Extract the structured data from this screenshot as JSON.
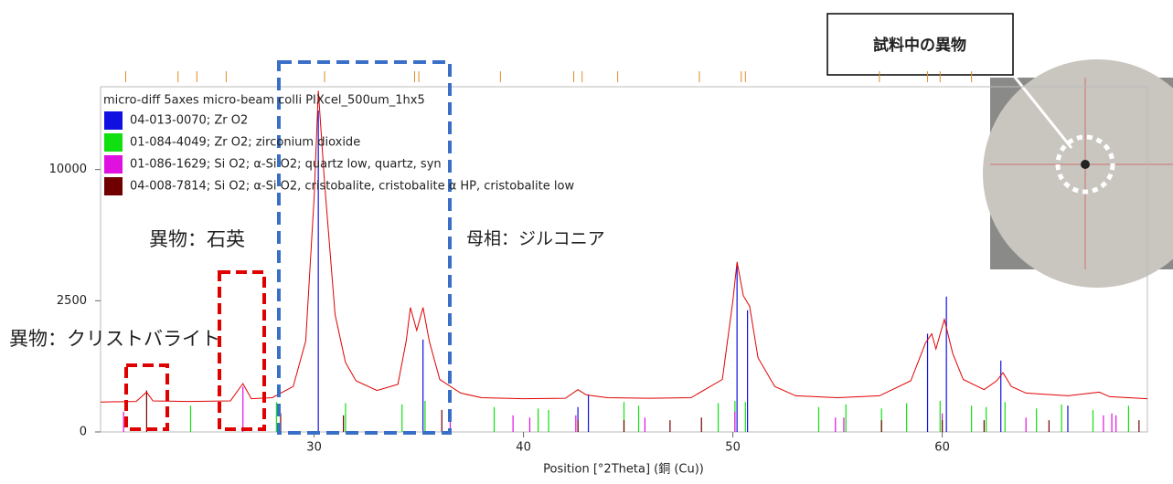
{
  "chart_data": {
    "type": "xrd",
    "legend_title": "micro-diff 5axes micro-beam colli PIXcel_500um_1hx5",
    "x_label": "Position [°2Theta] (銅 (Cu))",
    "xlim": [
      19.8,
      69.8
    ],
    "xticks": [
      30,
      40,
      50,
      60
    ],
    "ylim": [
      0,
      17300
    ],
    "yticks": [
      0,
      2500,
      10000
    ],
    "y_scale": "sqrt",
    "pattern": {
      "color": "#e00000",
      "x": [
        19.8,
        21.5,
        22.0,
        22.3,
        24,
        26,
        26.6,
        27,
        28,
        29,
        29.6,
        30.0,
        30.2,
        30.5,
        31,
        31.5,
        32,
        33,
        34,
        34.4,
        34.6,
        34.9,
        35.2,
        35.5,
        36,
        37,
        38,
        40,
        42,
        42.6,
        43,
        44,
        46,
        48,
        49.5,
        50.0,
        50.2,
        50.5,
        50.8,
        51.2,
        52,
        53,
        55,
        57,
        58.5,
        59.2,
        59.5,
        59.7,
        60.1,
        60.5,
        61,
        62,
        62.6,
        62.9,
        63.3,
        64,
        66,
        67.5,
        68,
        69.8
      ],
      "values": [
        130,
        135,
        230,
        140,
        135,
        140,
        340,
        160,
        170,
        300,
        1200,
        8000,
        16900,
        9000,
        2000,
        700,
        380,
        250,
        330,
        1200,
        2250,
        1500,
        2250,
        1200,
        400,
        220,
        170,
        160,
        165,
        260,
        200,
        170,
        165,
        170,
        400,
        2500,
        4200,
        2700,
        2300,
        800,
        300,
        190,
        170,
        190,
        380,
        1150,
        1400,
        1000,
        1840,
        900,
        400,
        260,
        380,
        510,
        300,
        220,
        190,
        230,
        180,
        160
      ]
    },
    "peak_list_positions": [
      21.0,
      23.5,
      24.4,
      25.8,
      30.5,
      34.8,
      35.0,
      38.9,
      42.4,
      42.8,
      44.5,
      48.4,
      50.4,
      50.6,
      57.0,
      59.3,
      59.9,
      61.4
    ],
    "peak_list_color": "#e08a2a",
    "references": [
      {
        "name": "04-013-0070; Zr O2",
        "color": "#1010e0",
        "positions": [
          30.2,
          35.2,
          42.6,
          43.1,
          50.2,
          50.7,
          59.3,
          60.2,
          62.8,
          66.0
        ],
        "values": [
          15000,
          1240,
          90,
          200,
          4000,
          2150,
          1400,
          2660,
          740,
          100
        ]
      },
      {
        "name": "01-084-4049; Zr O2; zirconium dioxide",
        "color": "#10e010",
        "positions": [
          24.1,
          28.2,
          31.5,
          34.2,
          35.3,
          38.6,
          40.7,
          41.2,
          44.8,
          45.5,
          49.3,
          50.1,
          50.6,
          54.1,
          55.4,
          57.1,
          58.3,
          59.9,
          61.4,
          62.1,
          63.0,
          64.5,
          65.7,
          67.2,
          68.9
        ],
        "values": [
          100,
          130,
          120,
          110,
          140,
          90,
          80,
          70,
          130,
          100,
          120,
          140,
          130,
          90,
          110,
          80,
          120,
          140,
          100,
          90,
          130,
          80,
          110,
          70,
          100
        ]
      },
      {
        "name": "01-086-1629; Si O2; α-Si O2; quartz low, quartz, syn",
        "color": "#e010e0",
        "positions": [
          20.9,
          26.6,
          36.5,
          39.5,
          40.3,
          42.5,
          45.8,
          50.1,
          54.9,
          55.3,
          60.0,
          64.0,
          67.7,
          68.1,
          68.3
        ],
        "values": [
          60,
          300,
          50,
          40,
          30,
          40,
          30,
          60,
          30,
          30,
          50,
          30,
          40,
          50,
          40
        ]
      },
      {
        "name": "04-008-7814; Si O2; α-Si O2, cristobalite, cristobalite α HP, cristobalite low",
        "color": "#700000",
        "positions": [
          22.0,
          28.4,
          31.4,
          36.1,
          42.6,
          44.8,
          47.0,
          48.5,
          57.1,
          60.0,
          62.0,
          65.1,
          69.4
        ],
        "values": [
          250,
          50,
          40,
          70,
          20,
          20,
          20,
          30,
          20,
          20,
          20,
          20,
          20
        ]
      }
    ],
    "annotations": [
      {
        "text": "異物：クリストバライト",
        "color": "#e00000"
      },
      {
        "text": "異物：石英",
        "color": "#e00000"
      },
      {
        "text": "母相：ジルコニア",
        "color": "#2a6fc0"
      },
      {
        "text": "試料中の異物",
        "color": "#000000"
      }
    ]
  }
}
